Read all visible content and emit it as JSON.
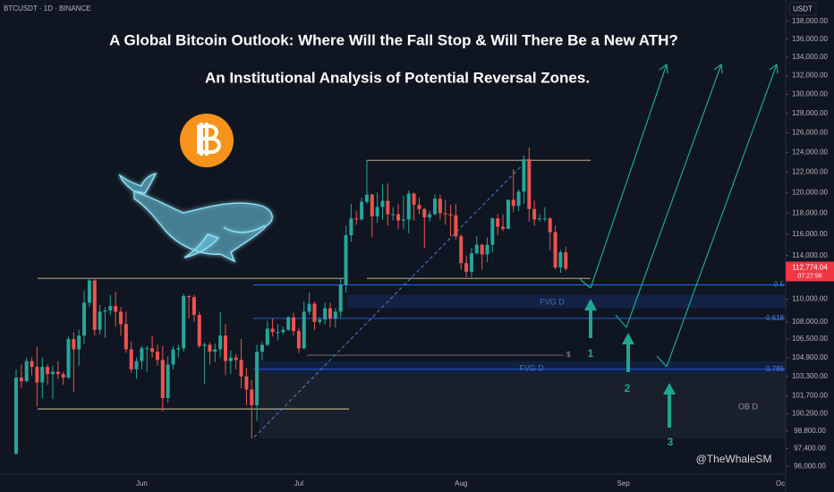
{
  "chart_data": {
    "type": "candlestick",
    "symbol": "BTCUSDT · 1D · BINANCE",
    "title": "A Global Bitcoin Outlook: Where Will the Fall Stop & Will There Be a New ATH?",
    "subtitle": "An Institutional Analysis of Potential Reversal Zones.",
    "currency": "USDT",
    "log_scale": true,
    "up_color": "#26a69a",
    "down_color": "#ef5350",
    "categories": [
      null,
      null,
      null,
      null,
      null,
      null,
      null,
      null,
      null,
      null,
      null,
      null,
      null,
      null,
      null,
      null,
      null,
      null,
      null,
      null,
      null,
      null,
      null,
      null,
      "Jun",
      null,
      null,
      null,
      null,
      null,
      null,
      null,
      null,
      null,
      null,
      null,
      null,
      null,
      null,
      null,
      null,
      null,
      null,
      null,
      null,
      null,
      null,
      null,
      null,
      null,
      null,
      null,
      null,
      null,
      "Jul",
      null,
      null,
      null,
      null,
      null,
      null,
      null,
      null,
      null,
      null,
      null,
      null,
      null,
      null,
      null,
      null,
      null,
      null,
      null,
      null,
      null,
      null,
      null,
      null,
      null,
      null,
      null,
      null,
      null,
      null,
      "Aug",
      null,
      null,
      null,
      null,
      null,
      null,
      null,
      null,
      null,
      null,
      null,
      null,
      null,
      null,
      null,
      null,
      null,
      null,
      null,
      null,
      null,
      null,
      null,
      null,
      null,
      null,
      null,
      null,
      null,
      null,
      "Sep",
      null,
      null,
      null,
      null,
      null,
      null,
      null,
      null,
      null,
      null,
      null,
      null,
      null,
      null,
      null,
      null,
      null,
      null,
      null,
      null,
      null,
      null,
      null,
      null,
      null,
      null,
      null,
      null,
      null,
      "Oc"
    ],
    "open": [
      97000,
      103200,
      102900,
      104600,
      104100,
      102800,
      104100,
      103500,
      103700,
      103500,
      103200,
      106500,
      105600,
      106800,
      109700,
      111700,
      107300,
      108900,
      109000,
      109400,
      108900,
      107800,
      105600,
      103900,
      104600,
      105700,
      105700,
      105400,
      104700,
      101500,
      104300,
      105600,
      105700,
      110300,
      110200,
      108600,
      105900,
      106000,
      105400,
      105600,
      106800,
      104600,
      104900,
      104700,
      103300,
      102200,
      100900,
      105400,
      106000,
      107400,
      107100,
      107100,
      107300,
      108400,
      107200,
      105700,
      108900,
      109600,
      108000,
      108200,
      109200,
      108300,
      108900,
      111300,
      115900,
      117500,
      117400,
      119100,
      119800,
      117700,
      118600,
      119200,
      117900,
      117900,
      117300,
      117400,
      119900,
      118800,
      118400,
      117600,
      117900,
      119400,
      118000,
      117900,
      117800,
      115800,
      113300,
      112500,
      114200,
      115000,
      114100,
      115000,
      117500,
      116700,
      116500,
      119300,
      118700,
      120100,
      123300,
      118400,
      117400,
      117500,
      117500,
      116200,
      112900,
      114300,
      null,
      null,
      null,
      null,
      null,
      null,
      null,
      null,
      null,
      null,
      null,
      null,
      null,
      null,
      null,
      null,
      null,
      null,
      null,
      null,
      null,
      null,
      null,
      null,
      null,
      null,
      null,
      null,
      null,
      null,
      null,
      null,
      null,
      null,
      null,
      null,
      null,
      null,
      null,
      null,
      null
    ],
    "high": [
      103900,
      104300,
      104900,
      104900,
      105800,
      104900,
      104300,
      104200,
      104600,
      103700,
      106700,
      107100,
      107300,
      110800,
      111900,
      111800,
      109500,
      109300,
      110400,
      110700,
      109300,
      108900,
      106300,
      104900,
      105900,
      105900,
      106800,
      106000,
      105900,
      105000,
      105900,
      106000,
      110500,
      110400,
      110400,
      108900,
      106200,
      106200,
      106100,
      108900,
      107800,
      105500,
      105200,
      106500,
      104000,
      103000,
      106000,
      106300,
      108100,
      108300,
      107800,
      107600,
      108500,
      108800,
      107500,
      109800,
      110600,
      109800,
      108400,
      109700,
      109700,
      109200,
      111900,
      116800,
      118900,
      118200,
      119500,
      123200,
      119900,
      120000,
      120800,
      120900,
      118600,
      118900,
      119700,
      120200,
      120000,
      119500,
      118500,
      118200,
      119800,
      119800,
      119300,
      118800,
      118900,
      116000,
      114000,
      114700,
      115800,
      115100,
      115700,
      117600,
      117900,
      117900,
      119300,
      122300,
      120300,
      123700,
      124500,
      119200,
      117900,
      118600,
      117600,
      116800,
      114500,
      114800,
      null,
      null,
      null,
      null,
      null,
      null,
      null,
      null,
      null,
      null,
      null,
      null,
      null,
      null,
      null,
      null,
      null,
      null,
      null,
      null,
      null,
      null,
      null,
      null,
      null,
      null,
      null,
      null,
      null,
      null,
      null,
      null,
      null,
      null,
      null,
      null,
      null,
      null,
      null,
      null,
      null
    ],
    "low": [
      96900,
      102300,
      102800,
      103400,
      100800,
      101500,
      102600,
      101400,
      103100,
      102600,
      103100,
      102000,
      104200,
      106100,
      109300,
      106800,
      106900,
      106600,
      108600,
      107600,
      106800,
      105300,
      103600,
      103100,
      103900,
      103700,
      104900,
      104200,
      100400,
      101100,
      103900,
      104900,
      105400,
      108300,
      108000,
      105700,
      102700,
      104300,
      104500,
      104900,
      103400,
      103500,
      103900,
      102300,
      100900,
      98200,
      99600,
      104700,
      105900,
      106700,
      106400,
      106900,
      107200,
      106800,
      105300,
      105600,
      108600,
      107300,
      107800,
      107800,
      107500,
      107500,
      108400,
      110600,
      115300,
      116900,
      117300,
      118900,
      115700,
      117100,
      117400,
      116800,
      117300,
      116500,
      116500,
      116100,
      117300,
      117900,
      114700,
      117200,
      117800,
      117400,
      116900,
      115800,
      115500,
      112700,
      112000,
      112000,
      114100,
      112700,
      113400,
      114300,
      115900,
      116300,
      116500,
      118100,
      118200,
      118900,
      117200,
      116800,
      117200,
      117200,
      114500,
      112700,
      112400,
      112600,
      null,
      null,
      null,
      null,
      null,
      null,
      null,
      null,
      null,
      null,
      null,
      null,
      null,
      null,
      null,
      null,
      null,
      null,
      null,
      null,
      null,
      null,
      null,
      null,
      null,
      null,
      null,
      null,
      null,
      null,
      null,
      null,
      null,
      null,
      null,
      null,
      null,
      null,
      null,
      null,
      null
    ],
    "close": [
      103200,
      102900,
      104600,
      104100,
      102800,
      104100,
      103500,
      103700,
      103500,
      103200,
      106500,
      105600,
      106800,
      109700,
      111700,
      107300,
      108900,
      109000,
      109400,
      108900,
      107800,
      105600,
      103900,
      104600,
      105700,
      105700,
      105400,
      104700,
      101500,
      104300,
      105600,
      105700,
      110300,
      110200,
      108600,
      105900,
      106000,
      105400,
      105600,
      106800,
      104600,
      104900,
      104700,
      103300,
      102200,
      100900,
      105400,
      106000,
      107400,
      107100,
      107100,
      107300,
      108400,
      107200,
      105700,
      108900,
      109600,
      108000,
      108200,
      109200,
      108300,
      108900,
      111300,
      115900,
      117500,
      117400,
      119100,
      119800,
      117700,
      118600,
      119200,
      117900,
      117900,
      117300,
      117400,
      119900,
      118800,
      118400,
      117600,
      117900,
      119400,
      118000,
      117900,
      117800,
      115800,
      113300,
      112500,
      114200,
      115000,
      114100,
      115000,
      117500,
      116700,
      116500,
      119300,
      118700,
      120100,
      123300,
      118400,
      117400,
      117500,
      117500,
      116200,
      112900,
      114300,
      112774.04,
      null,
      null,
      null,
      null,
      null,
      null,
      null,
      null,
      null,
      null,
      null,
      null,
      null,
      null,
      null,
      null,
      null,
      null,
      null,
      null,
      null,
      null,
      null,
      null,
      null,
      null,
      null,
      null,
      null,
      null,
      null,
      null,
      null,
      null,
      null,
      null,
      null,
      null,
      null,
      null,
      null
    ],
    "ylim": [
      94700,
      140400
    ],
    "yticks": [
      {
        "value": 96000,
        "label": "96,000.00"
      },
      {
        "value": 97400,
        "label": "97,400.00"
      },
      {
        "value": 98800,
        "label": "98,800.00"
      },
      {
        "value": 100200,
        "label": "100,200.00"
      },
      {
        "value": 101700,
        "label": "101,700.00"
      },
      {
        "value": 103300,
        "label": "103,300.00"
      },
      {
        "value": 104900,
        "label": "104,900.00"
      },
      {
        "value": 106500,
        "label": "106,500.00"
      },
      {
        "value": 108000,
        "label": "108,000.00"
      },
      {
        "value": 110000,
        "label": "110,000.00"
      },
      {
        "value": 114000,
        "label": "114,000.00"
      },
      {
        "value": 116000,
        "label": "116,000.00"
      },
      {
        "value": 118000,
        "label": "118,000.00"
      },
      {
        "value": 120000,
        "label": "120,000.00"
      },
      {
        "value": 122000,
        "label": "122,000.00"
      },
      {
        "value": 124000,
        "label": "124,000.00"
      },
      {
        "value": 126000,
        "label": "126,000.00"
      },
      {
        "value": 128000,
        "label": "128,000.00"
      },
      {
        "value": 130000,
        "label": "130,000.00"
      },
      {
        "value": 132000,
        "label": "132,000.00"
      },
      {
        "value": 134000,
        "label": "134,000.00"
      },
      {
        "value": 136000,
        "label": "136,000.00"
      },
      {
        "value": 138000,
        "label": "138,000.00"
      }
    ],
    "last_price": {
      "value": 112774.04,
      "label": "112,774.04"
    },
    "countdown": "07:27:56",
    "levels": [
      {
        "value": 111900
      },
      {
        "value": 100600
      },
      {
        "value": 123200
      },
      {
        "value": 111900
      },
      {
        "value": 111300,
        "label": "0.5"
      },
      {
        "value": 108300,
        "label": "0.618"
      },
      {
        "value": 103900,
        "label": "0.786"
      },
      {
        "value": 105100,
        "label": "$"
      }
    ],
    "zones": [
      {
        "label": "FVG D",
        "range": [
          109200,
          110400
        ]
      },
      {
        "label": "FVG D",
        "range": [
          103500,
          104600
        ]
      },
      {
        "label": "OB D",
        "range": [
          98200,
          103500
        ]
      }
    ],
    "trendline": [
      98300,
      123300
    ],
    "targets": [
      "1",
      "2",
      "3"
    ],
    "watermark": "@TheWhaleSM"
  }
}
